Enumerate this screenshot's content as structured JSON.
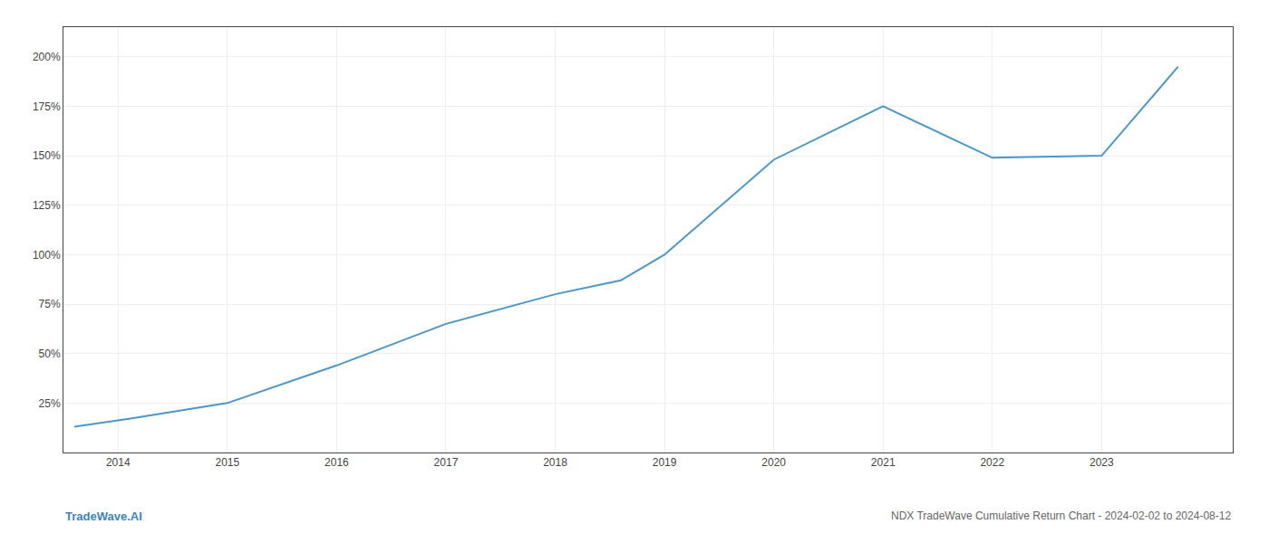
{
  "chart_data": {
    "type": "line",
    "title": "NDX TradeWave Cumulative Return Chart - 2024-02-02 to 2024-08-12",
    "annotations": [
      {
        "text": "TradeWave.AI",
        "color": "#3a85c0"
      }
    ],
    "x": [
      2013.6,
      2014.1,
      2015.0,
      2016.0,
      2017.0,
      2018.0,
      2018.6,
      2019.0,
      2020.0,
      2021.0,
      2022.0,
      2023.0,
      2023.7
    ],
    "values": [
      13,
      17,
      25,
      44,
      65,
      80,
      87,
      100,
      148,
      175,
      149,
      150,
      195
    ],
    "color": "#4c96c8",
    "xlim": [
      2013.5,
      2024.2
    ],
    "xticks": [
      2014,
      2015,
      2016,
      2017,
      2018,
      2019,
      2020,
      2021,
      2022,
      2023
    ],
    "ylim": [
      0,
      215
    ],
    "yticks": [
      {
        "value": 25,
        "label": "25%"
      },
      {
        "value": 50,
        "label": "50%"
      },
      {
        "value": 75,
        "label": "75%"
      },
      {
        "value": 100,
        "label": "100%"
      },
      {
        "value": 125,
        "label": "125%"
      },
      {
        "value": 150,
        "label": "150%"
      },
      {
        "value": 175,
        "label": "175%"
      },
      {
        "value": 200,
        "label": "200%"
      }
    ],
    "grid": true
  }
}
